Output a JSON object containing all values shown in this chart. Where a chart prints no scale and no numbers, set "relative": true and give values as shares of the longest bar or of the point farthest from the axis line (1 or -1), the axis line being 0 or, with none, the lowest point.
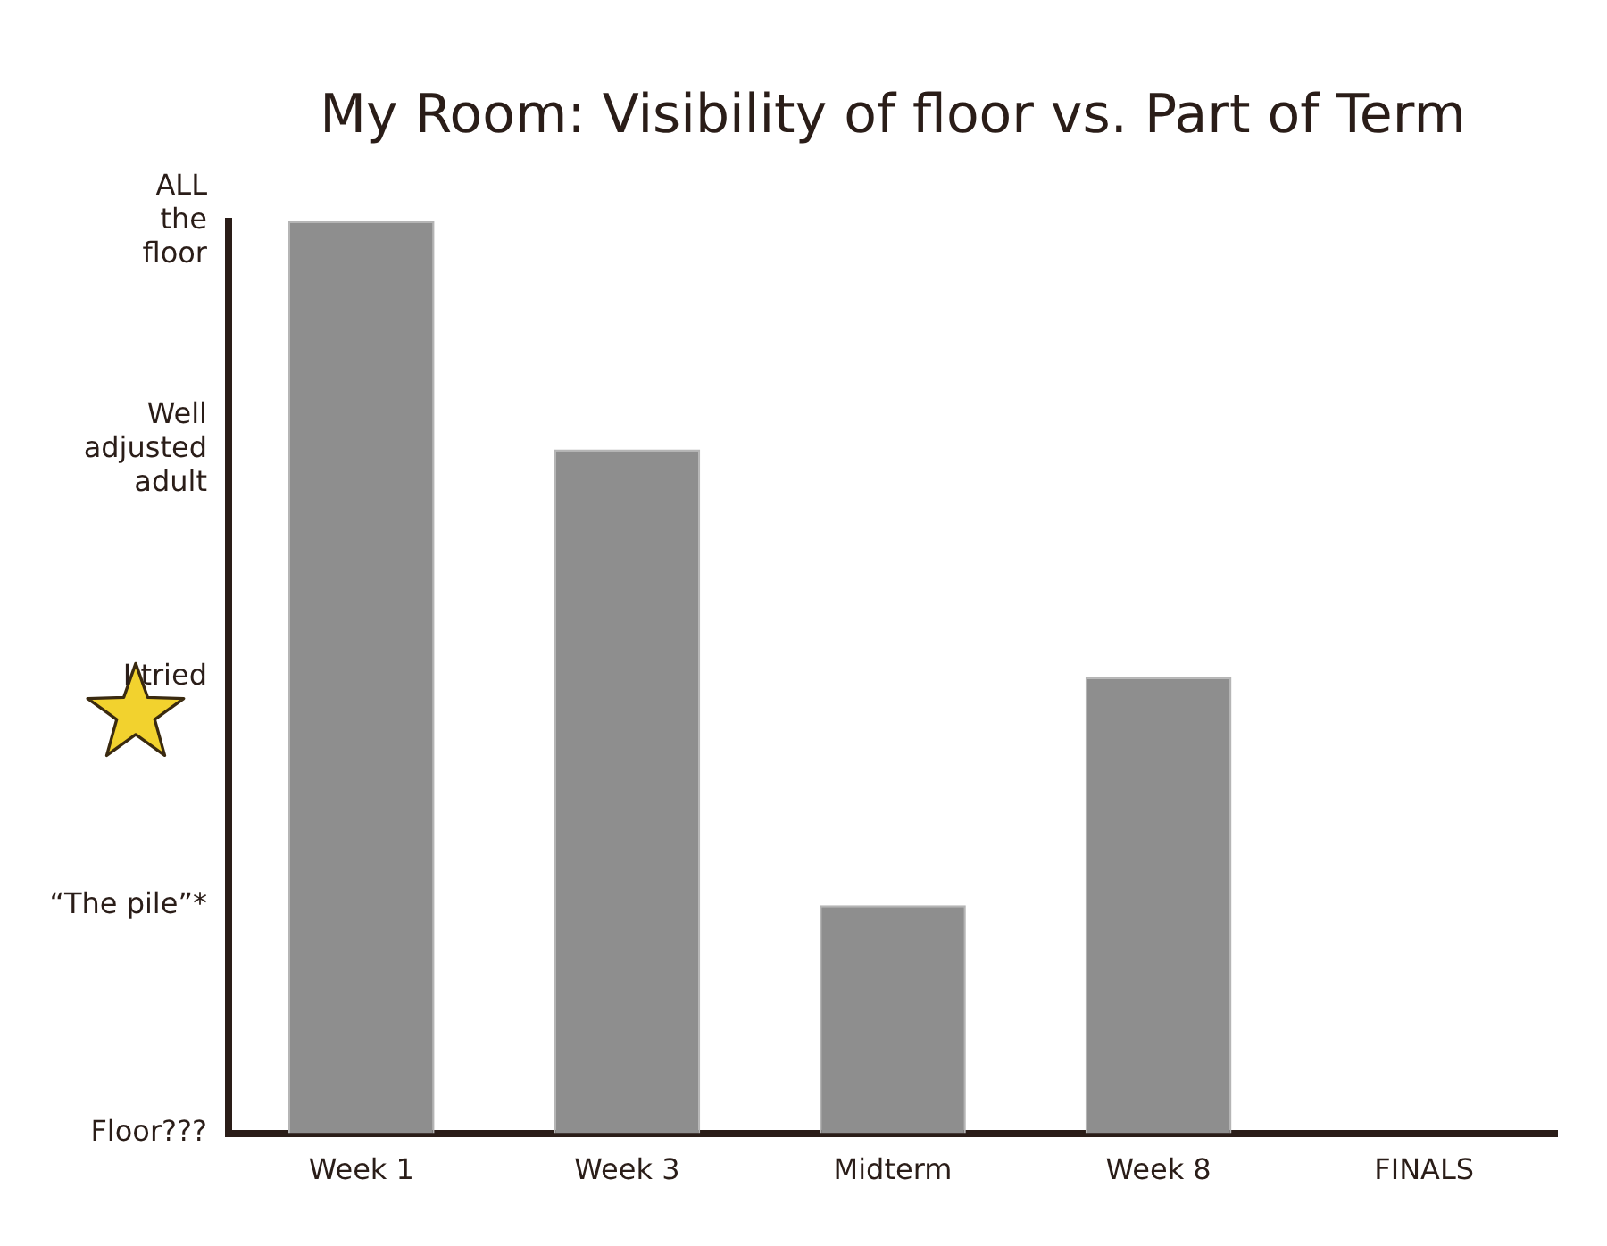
{
  "chart_data": {
    "type": "bar",
    "title": "My Room: Visibility of floor vs. Part of Term",
    "categories": [
      "Week 1",
      "Week 3",
      "Midterm",
      "Week 8",
      "FINALS"
    ],
    "values": [
      1,
      0.75,
      0.25,
      0.5,
      null
    ],
    "color": "#8e8e8e",
    "relative": true,
    "annotations": [
      "ALL\nthe\nfloor",
      "Well\nadjusted\nadult",
      "I tried",
      "“The pile”*",
      "Floor???"
    ],
    "grid": false,
    "legend": false
  }
}
